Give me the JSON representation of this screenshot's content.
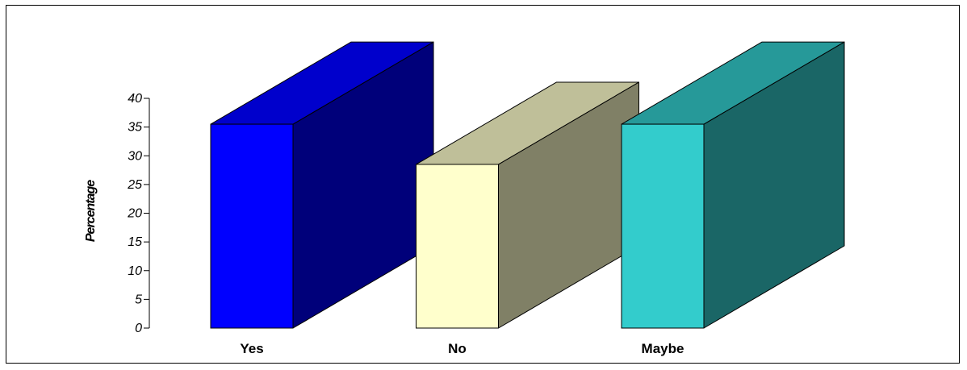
{
  "chart_data": {
    "type": "bar",
    "style": "3d-column",
    "categories": [
      "Yes",
      "No",
      "Maybe"
    ],
    "values": [
      35.5,
      28.5,
      35.5
    ],
    "ylabel": "Percentage",
    "ylim": [
      0,
      40
    ],
    "yticks": [
      "0",
      "5",
      "10",
      "15",
      "20",
      "25",
      "30",
      "35",
      "40"
    ],
    "grid": false,
    "legend": "none",
    "colors": [
      {
        "front": "#0000FF",
        "top": "#0000CC",
        "side": "#00007A"
      },
      {
        "front": "#FFFFCC",
        "top": "#BFBF99",
        "side": "#808066"
      },
      {
        "front": "#33CCCC",
        "top": "#269999",
        "side": "#1A6666"
      }
    ]
  }
}
